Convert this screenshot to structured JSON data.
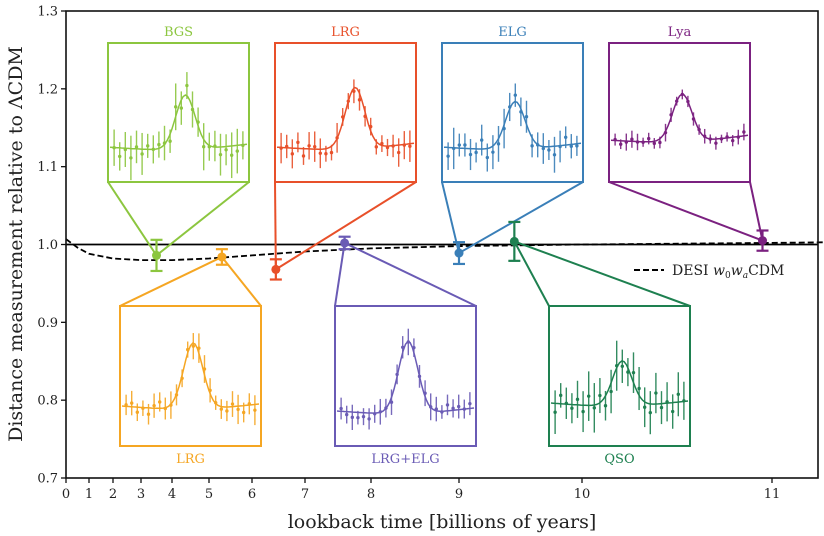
{
  "chart_data": {
    "type": "scatter",
    "title": "",
    "xlabel": "lookback time [billions of years]",
    "ylabel": "Distance measurement relative to ΛCDM",
    "ylim": [
      0.7,
      1.3
    ],
    "xlim": [
      0,
      11.35
    ],
    "x_ticks": [
      0,
      1,
      2,
      3,
      4,
      5,
      6,
      7,
      8,
      9,
      10,
      11
    ],
    "y_ticks": [
      0.7,
      0.8,
      0.9,
      1.0,
      1.1,
      1.2,
      1.3
    ],
    "y_tick_labels": [
      "0.7",
      "0.8",
      "0.9",
      "1.0",
      "1.1",
      "1.2",
      "1.3"
    ],
    "grid": false,
    "reference_line": {
      "y": 1.0,
      "style": "solid",
      "color": "#000000"
    },
    "model_curve": {
      "name": "DESI w₀wₐCDM",
      "style": "dashed",
      "color": "#000000",
      "x": [
        0,
        0.5,
        1,
        2,
        3,
        4,
        5,
        6,
        7,
        8,
        9,
        10,
        11,
        11.35
      ],
      "y": [
        1.007,
        0.996,
        0.988,
        0.982,
        0.98,
        0.98,
        0.982,
        0.986,
        0.991,
        0.995,
        0.998,
        1.0,
        1.002,
        1.003
      ]
    },
    "legend": {
      "position": "right",
      "entries": [
        "DESI w₀wₐCDM"
      ]
    },
    "series": [
      {
        "name": "BGS",
        "color": "#8cc63f",
        "x": 3.5,
        "y": 0.986,
        "err": 0.02,
        "inset": "top",
        "inset_slot": 0
      },
      {
        "name": "LRG",
        "color": "#f5a623",
        "x": 5.3,
        "y": 0.984,
        "err": 0.01,
        "inset": "bottom",
        "inset_slot": 0
      },
      {
        "name": "LRG",
        "color": "#e8502a",
        "x": 6.45,
        "y": 0.968,
        "err": 0.013,
        "inset": "top",
        "inset_slot": 1
      },
      {
        "name": "LRG+ELG",
        "color": "#6a5bb5",
        "x": 7.6,
        "y": 1.002,
        "err": 0.008,
        "inset": "bottom",
        "inset_slot": 1
      },
      {
        "name": "ELG",
        "color": "#3a7fb8",
        "x": 9.0,
        "y": 0.989,
        "err": 0.014,
        "inset": "top",
        "inset_slot": 2
      },
      {
        "name": "QSO",
        "color": "#1e8050",
        "x": 9.45,
        "y": 1.004,
        "err": 0.025,
        "inset": "bottom",
        "inset_slot": 2
      },
      {
        "name": "Lya",
        "color": "#7b2180",
        "x": 10.95,
        "y": 1.005,
        "err": 0.013,
        "inset": "top",
        "inset_slot": 3
      }
    ],
    "insets": [
      {
        "label": "BGS",
        "color": "#8cc63f",
        "peak_pos": 0.55,
        "peak_height": 0.55,
        "base_left": 0.2,
        "base_right": 0.23,
        "noise": 0.16
      },
      {
        "label": "LRG",
        "color": "#e8502a",
        "peak_pos": 0.57,
        "peak_height": 0.62,
        "base_left": 0.2,
        "base_right": 0.24,
        "noise": 0.11
      },
      {
        "label": "ELG",
        "color": "#3a7fb8",
        "peak_pos": 0.52,
        "peak_height": 0.48,
        "base_left": 0.2,
        "base_right": 0.24,
        "noise": 0.14
      },
      {
        "label": "Lya",
        "color": "#7b2180",
        "peak_pos": 0.52,
        "peak_height": 0.48,
        "base_left": 0.27,
        "base_right": 0.32,
        "noise": 0.06
      },
      {
        "label": "LRG",
        "color": "#f5a623",
        "peak_pos": 0.52,
        "peak_height": 0.66,
        "base_left": 0.25,
        "base_right": 0.27,
        "noise": 0.1
      },
      {
        "label": "LRG+ELG",
        "color": "#6a5bb5",
        "peak_pos": 0.52,
        "peak_height": 0.72,
        "base_left": 0.2,
        "base_right": 0.23,
        "noise": 0.09
      },
      {
        "label": "QSO",
        "color": "#1e8050",
        "peak_pos": 0.52,
        "peak_height": 0.45,
        "base_left": 0.28,
        "base_right": 0.3,
        "noise": 0.17
      }
    ]
  }
}
